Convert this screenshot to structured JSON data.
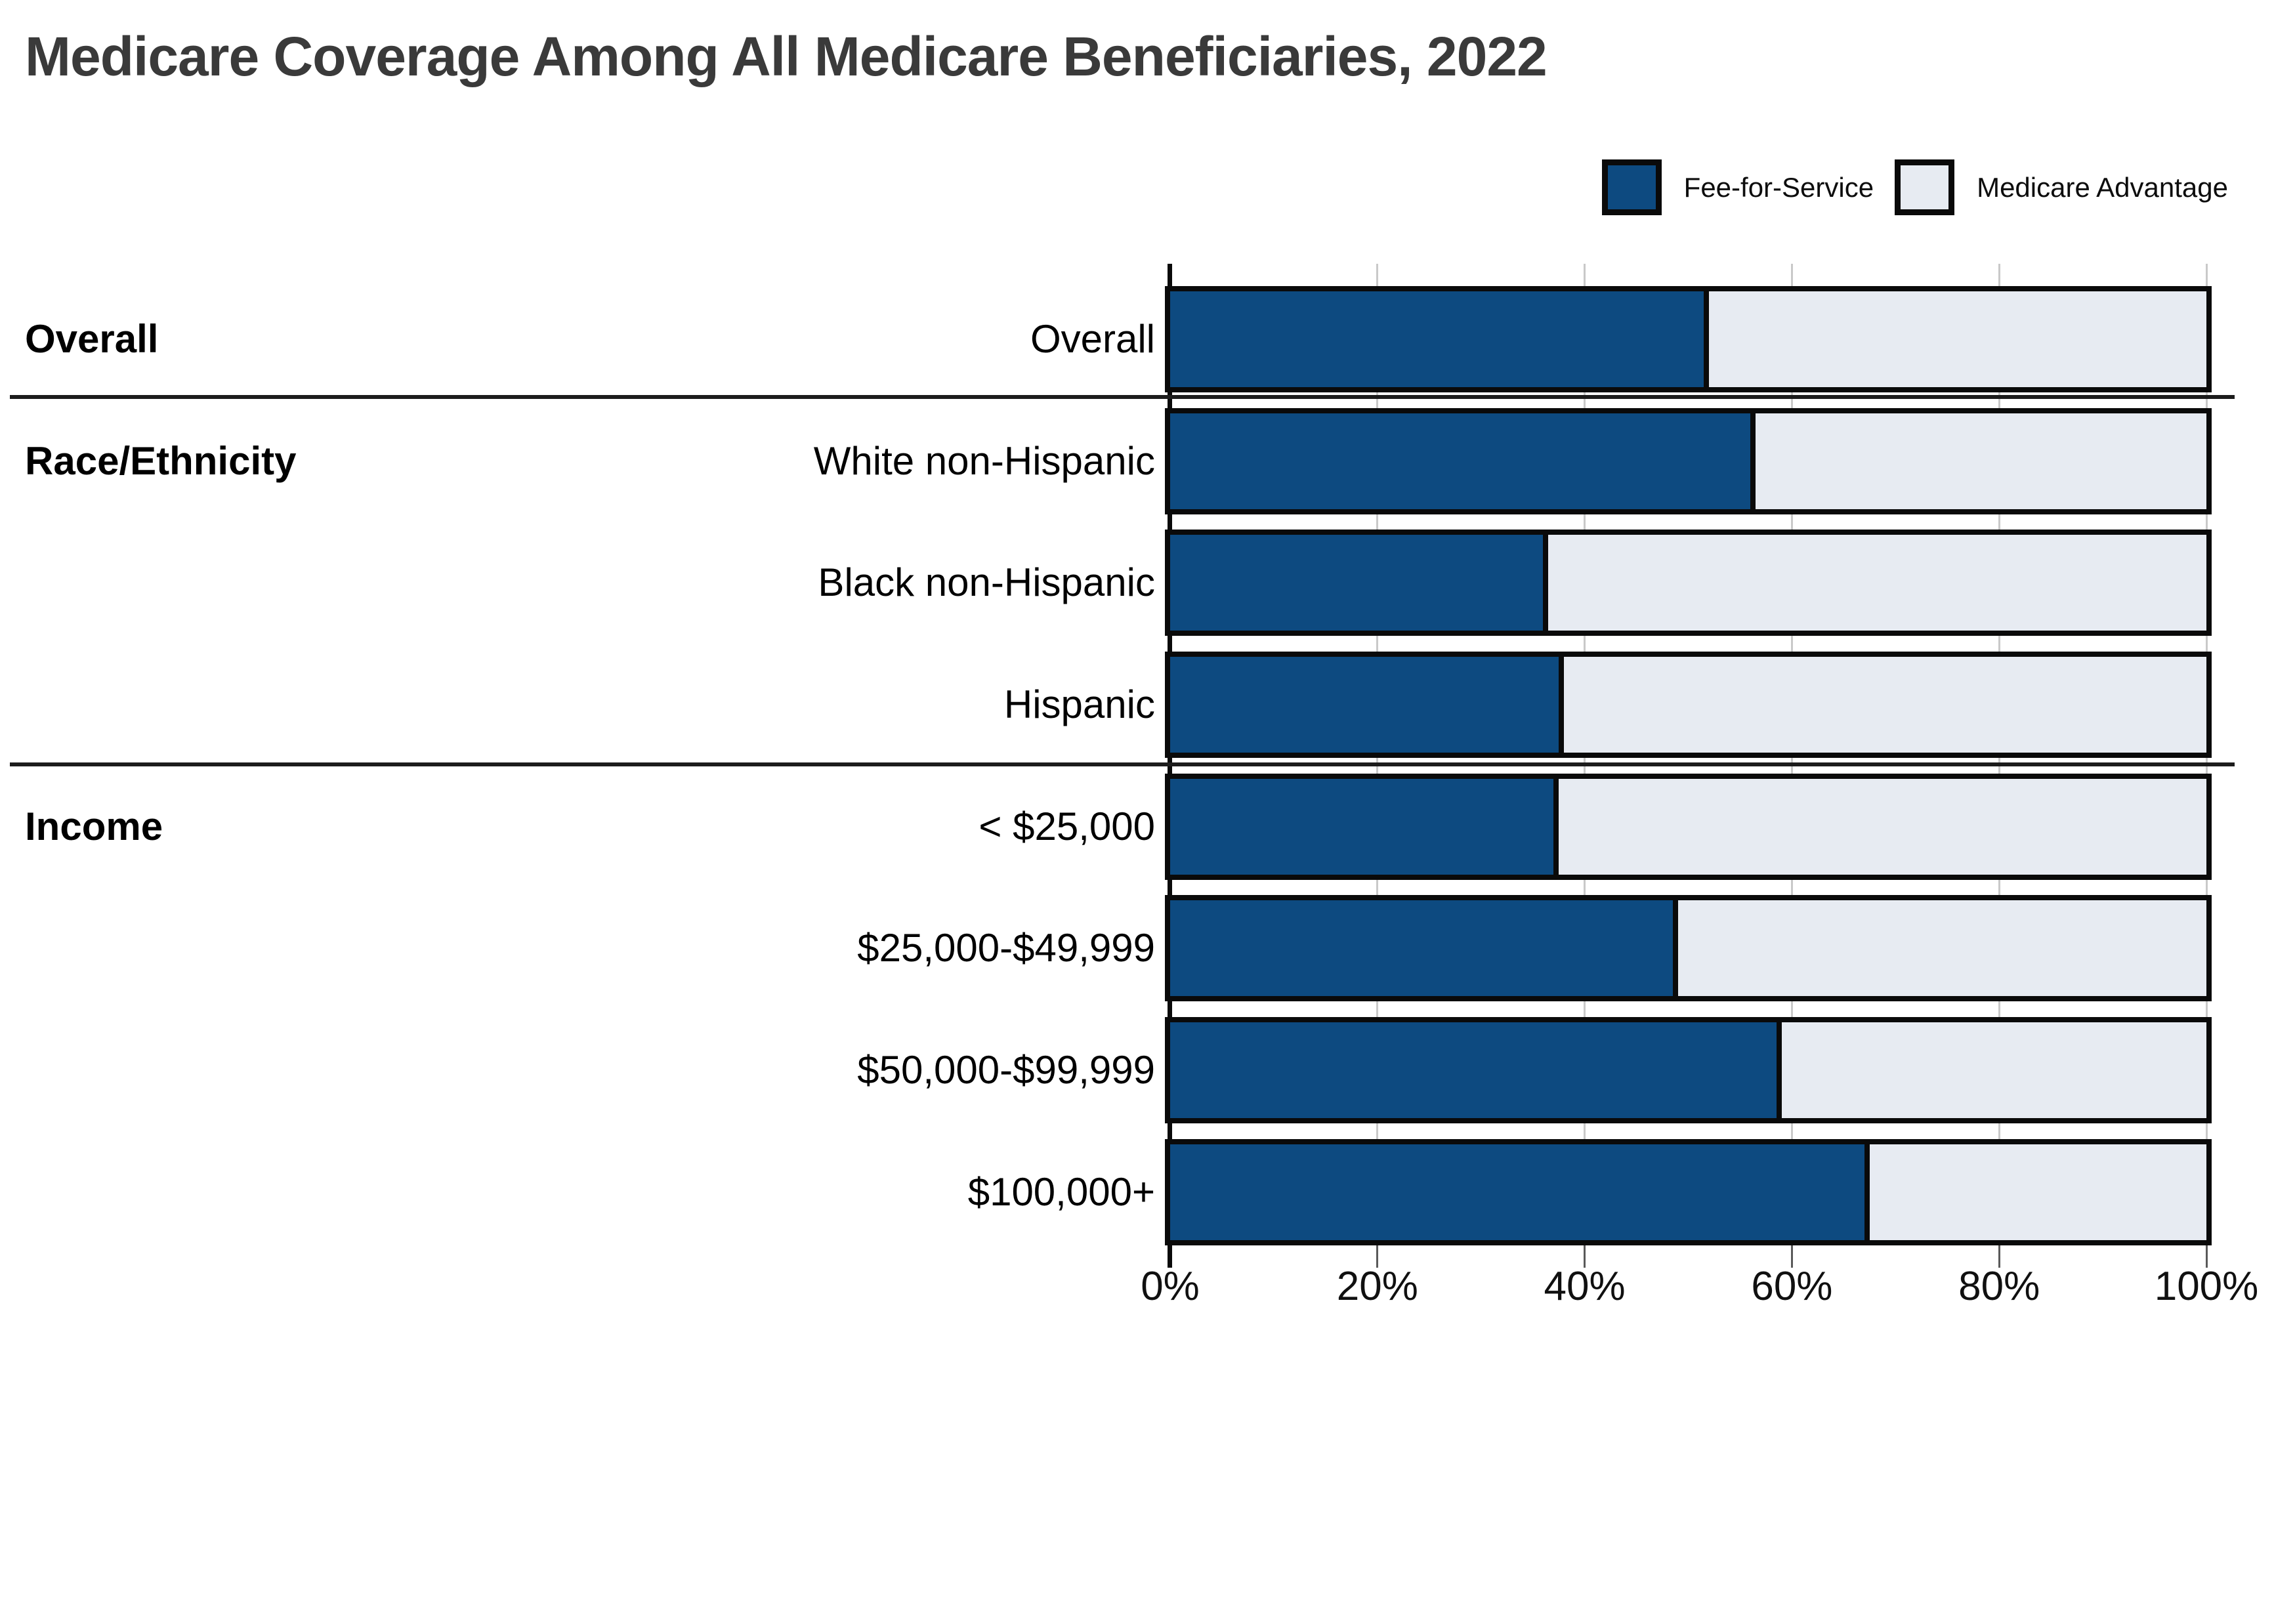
{
  "title": "Medicare Coverage Among All Medicare Beneficiaries, 2022",
  "colors": {
    "fee_for_service": "#0d4a80",
    "medicare_advantage": "#e7ebf2",
    "bar_border": "#0a0a0a",
    "gridline": "#c9c9c9",
    "title_text": "#3a3a3a"
  },
  "chart_data": {
    "type": "bar",
    "subtype": "horizontal_stacked_100pct",
    "title": "Medicare Coverage Among All Medicare Beneficiaries, 2022",
    "categories": [
      "Overall",
      "White non-Hispanic",
      "Black non-Hispanic",
      "Hispanic",
      "< $25,000",
      "$25,000-$49,999",
      "$50,000-$99,999",
      "$100,000+"
    ],
    "groups": [
      {
        "label": "Overall",
        "rows": [
          0
        ]
      },
      {
        "label": "Race/Ethnicity",
        "rows": [
          1,
          2,
          3
        ]
      },
      {
        "label": "Income",
        "rows": [
          4,
          5,
          6,
          7
        ]
      }
    ],
    "series": [
      {
        "name": "Fee-for-Service",
        "color": "#0d4a80",
        "values": [
          52,
          56.5,
          36.5,
          38,
          37.5,
          49,
          59,
          67.5
        ]
      },
      {
        "name": "Medicare Advantage",
        "color": "#e7ebf2",
        "values": [
          48,
          43.5,
          63.5,
          62,
          62.5,
          51,
          41,
          32.5
        ]
      }
    ],
    "unit": "%",
    "xlim": [
      0,
      100
    ],
    "x_ticks": [
      "0%",
      "20%",
      "40%",
      "60%",
      "80%",
      "100%"
    ],
    "x_tick_values": [
      0,
      20,
      40,
      60,
      80,
      100
    ],
    "grid": "vertical",
    "legend_position": "top-right"
  }
}
